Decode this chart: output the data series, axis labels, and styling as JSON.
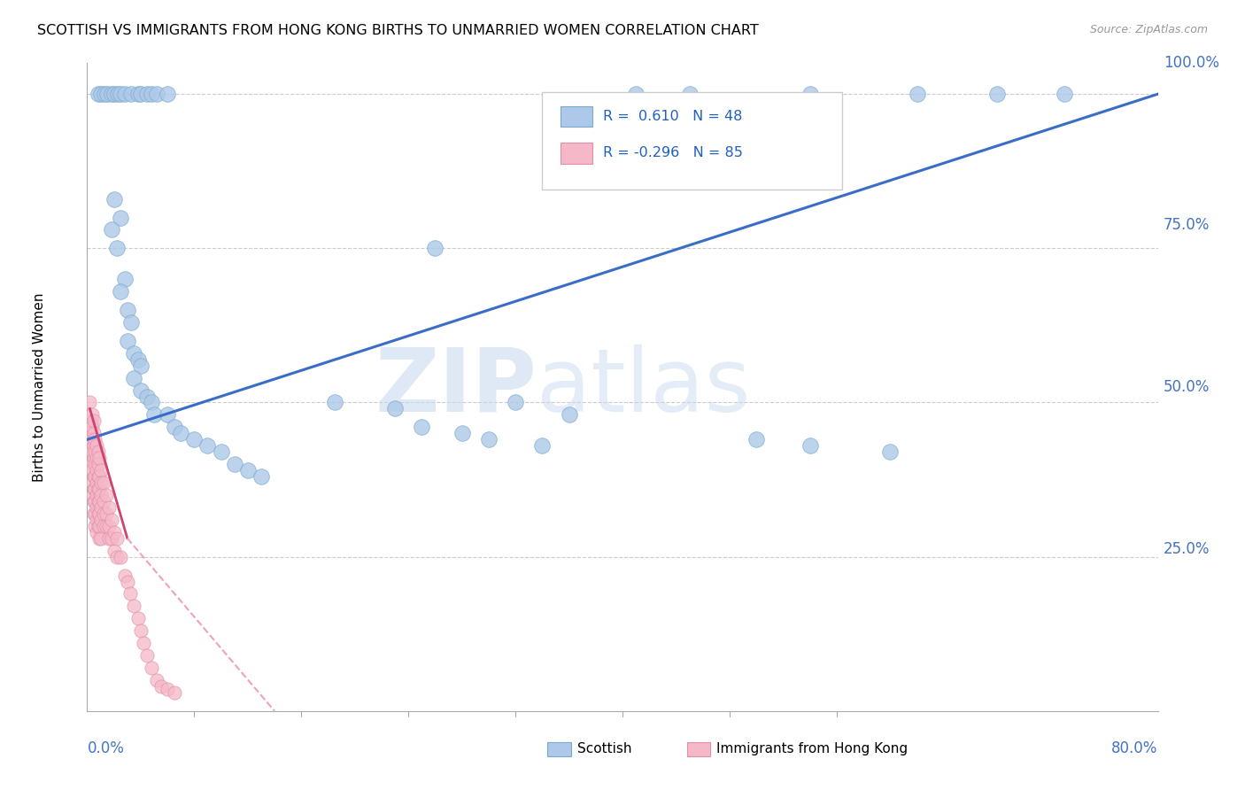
{
  "title": "SCOTTISH VS IMMIGRANTS FROM HONG KONG BIRTHS TO UNMARRIED WOMEN CORRELATION CHART",
  "source": "Source: ZipAtlas.com",
  "ylabel": "Births to Unmarried Women",
  "xlim": [
    0.0,
    0.8
  ],
  "ylim": [
    0.0,
    1.05
  ],
  "watermark_zip": "ZIP",
  "watermark_atlas": "atlas",
  "blue_color": "#adc8e8",
  "blue_edge_color": "#7aaad0",
  "pink_color": "#f5b8c8",
  "pink_edge_color": "#e090a8",
  "blue_line_color": "#3a6cc8",
  "pink_line_color": "#cc4470",
  "pink_dashed_color": "#f0a0c0",
  "blue_scatter": [
    [
      0.008,
      1.0
    ],
    [
      0.01,
      1.0
    ],
    [
      0.013,
      1.0
    ],
    [
      0.015,
      1.0
    ],
    [
      0.018,
      1.0
    ],
    [
      0.02,
      1.0
    ],
    [
      0.023,
      1.0
    ],
    [
      0.025,
      1.0
    ],
    [
      0.028,
      1.0
    ],
    [
      0.033,
      1.0
    ],
    [
      0.038,
      1.0
    ],
    [
      0.04,
      1.0
    ],
    [
      0.045,
      1.0
    ],
    [
      0.048,
      1.0
    ],
    [
      0.052,
      1.0
    ],
    [
      0.06,
      1.0
    ],
    [
      0.41,
      1.0
    ],
    [
      0.45,
      1.0
    ],
    [
      0.54,
      1.0
    ],
    [
      0.62,
      1.0
    ],
    [
      0.68,
      1.0
    ],
    [
      0.73,
      1.0
    ],
    [
      0.02,
      0.83
    ],
    [
      0.025,
      0.8
    ],
    [
      0.018,
      0.78
    ],
    [
      0.022,
      0.75
    ],
    [
      0.028,
      0.7
    ],
    [
      0.025,
      0.68
    ],
    [
      0.03,
      0.65
    ],
    [
      0.033,
      0.63
    ],
    [
      0.03,
      0.6
    ],
    [
      0.035,
      0.58
    ],
    [
      0.038,
      0.57
    ],
    [
      0.04,
      0.56
    ],
    [
      0.035,
      0.54
    ],
    [
      0.04,
      0.52
    ],
    [
      0.045,
      0.51
    ],
    [
      0.048,
      0.5
    ],
    [
      0.05,
      0.48
    ],
    [
      0.06,
      0.48
    ],
    [
      0.065,
      0.46
    ],
    [
      0.07,
      0.45
    ],
    [
      0.08,
      0.44
    ],
    [
      0.09,
      0.43
    ],
    [
      0.1,
      0.42
    ],
    [
      0.11,
      0.4
    ],
    [
      0.12,
      0.39
    ],
    [
      0.13,
      0.38
    ],
    [
      0.185,
      0.5
    ],
    [
      0.23,
      0.49
    ],
    [
      0.25,
      0.46
    ],
    [
      0.28,
      0.45
    ],
    [
      0.3,
      0.44
    ],
    [
      0.34,
      0.43
    ],
    [
      0.26,
      0.75
    ],
    [
      0.32,
      0.5
    ],
    [
      0.36,
      0.48
    ],
    [
      0.5,
      0.44
    ],
    [
      0.54,
      0.43
    ],
    [
      0.6,
      0.42
    ]
  ],
  "pink_scatter": [
    [
      0.002,
      0.5
    ],
    [
      0.003,
      0.47
    ],
    [
      0.003,
      0.45
    ],
    [
      0.003,
      0.43
    ],
    [
      0.003,
      0.4
    ],
    [
      0.004,
      0.48
    ],
    [
      0.004,
      0.46
    ],
    [
      0.004,
      0.44
    ],
    [
      0.004,
      0.42
    ],
    [
      0.004,
      0.39
    ],
    [
      0.004,
      0.37
    ],
    [
      0.004,
      0.35
    ],
    [
      0.005,
      0.47
    ],
    [
      0.005,
      0.45
    ],
    [
      0.005,
      0.43
    ],
    [
      0.005,
      0.41
    ],
    [
      0.005,
      0.38
    ],
    [
      0.005,
      0.36
    ],
    [
      0.005,
      0.34
    ],
    [
      0.005,
      0.32
    ],
    [
      0.006,
      0.44
    ],
    [
      0.006,
      0.42
    ],
    [
      0.006,
      0.4
    ],
    [
      0.006,
      0.38
    ],
    [
      0.006,
      0.36
    ],
    [
      0.006,
      0.34
    ],
    [
      0.006,
      0.32
    ],
    [
      0.006,
      0.3
    ],
    [
      0.007,
      0.43
    ],
    [
      0.007,
      0.41
    ],
    [
      0.007,
      0.39
    ],
    [
      0.007,
      0.37
    ],
    [
      0.007,
      0.35
    ],
    [
      0.007,
      0.33
    ],
    [
      0.007,
      0.31
    ],
    [
      0.007,
      0.29
    ],
    [
      0.008,
      0.42
    ],
    [
      0.008,
      0.4
    ],
    [
      0.008,
      0.38
    ],
    [
      0.008,
      0.36
    ],
    [
      0.008,
      0.34
    ],
    [
      0.008,
      0.32
    ],
    [
      0.008,
      0.3
    ],
    [
      0.009,
      0.41
    ],
    [
      0.009,
      0.38
    ],
    [
      0.009,
      0.36
    ],
    [
      0.009,
      0.34
    ],
    [
      0.009,
      0.32
    ],
    [
      0.009,
      0.3
    ],
    [
      0.009,
      0.28
    ],
    [
      0.01,
      0.39
    ],
    [
      0.01,
      0.37
    ],
    [
      0.01,
      0.35
    ],
    [
      0.01,
      0.33
    ],
    [
      0.01,
      0.31
    ],
    [
      0.01,
      0.28
    ],
    [
      0.012,
      0.37
    ],
    [
      0.012,
      0.34
    ],
    [
      0.012,
      0.32
    ],
    [
      0.012,
      0.3
    ],
    [
      0.014,
      0.35
    ],
    [
      0.014,
      0.32
    ],
    [
      0.014,
      0.3
    ],
    [
      0.016,
      0.33
    ],
    [
      0.016,
      0.3
    ],
    [
      0.016,
      0.28
    ],
    [
      0.018,
      0.31
    ],
    [
      0.018,
      0.28
    ],
    [
      0.02,
      0.29
    ],
    [
      0.02,
      0.26
    ],
    [
      0.022,
      0.28
    ],
    [
      0.022,
      0.25
    ],
    [
      0.025,
      0.25
    ],
    [
      0.028,
      0.22
    ],
    [
      0.03,
      0.21
    ],
    [
      0.032,
      0.19
    ],
    [
      0.035,
      0.17
    ],
    [
      0.038,
      0.15
    ],
    [
      0.04,
      0.13
    ],
    [
      0.042,
      0.11
    ],
    [
      0.045,
      0.09
    ],
    [
      0.048,
      0.07
    ],
    [
      0.052,
      0.05
    ],
    [
      0.055,
      0.04
    ],
    [
      0.06,
      0.035
    ],
    [
      0.065,
      0.03
    ]
  ],
  "blue_trendline": [
    [
      0.0,
      0.44
    ],
    [
      0.8,
      1.0
    ]
  ],
  "pink_trendline_solid": [
    [
      0.002,
      0.49
    ],
    [
      0.03,
      0.28
    ]
  ],
  "pink_trendline_dashed": [
    [
      0.03,
      0.28
    ],
    [
      0.14,
      0.0
    ]
  ]
}
